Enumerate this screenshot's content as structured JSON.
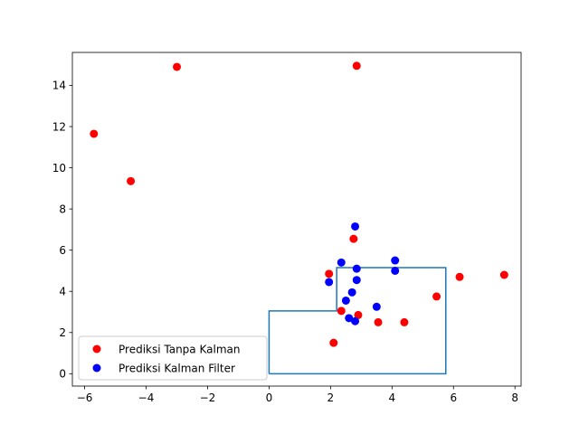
{
  "chart_data": {
    "type": "scatter",
    "title": "",
    "xlabel": "",
    "ylabel": "",
    "xlim": [
      -6.4,
      8.2
    ],
    "ylim": [
      -0.6,
      15.6
    ],
    "grid": false,
    "legend_position": "lower-left",
    "xticks": [
      -6,
      -4,
      -2,
      0,
      2,
      4,
      6,
      8
    ],
    "xtick_labels": [
      "−6",
      "−4",
      "−2",
      "0",
      "2",
      "4",
      "6",
      "8"
    ],
    "yticks": [
      0,
      2,
      4,
      6,
      8,
      10,
      12,
      14
    ],
    "ytick_labels": [
      "0",
      "2",
      "4",
      "6",
      "8",
      "10",
      "12",
      "14"
    ],
    "series": [
      {
        "name": "Prediksi Tanpa Kalman",
        "color": "#ff0000",
        "points": [
          [
            -5.7,
            11.65
          ],
          [
            -4.5,
            9.35
          ],
          [
            -3.0,
            14.9
          ],
          [
            2.85,
            14.95
          ],
          [
            2.75,
            6.55
          ],
          [
            1.95,
            4.85
          ],
          [
            2.35,
            3.05
          ],
          [
            2.9,
            2.85
          ],
          [
            3.55,
            2.5
          ],
          [
            4.4,
            2.5
          ],
          [
            2.1,
            1.5
          ],
          [
            5.45,
            3.75
          ],
          [
            6.2,
            4.7
          ],
          [
            7.65,
            4.8
          ]
        ]
      },
      {
        "name": "Prediksi Kalman Filter",
        "color": "#0000ff",
        "points": [
          [
            2.8,
            7.15
          ],
          [
            2.35,
            5.4
          ],
          [
            2.85,
            5.1
          ],
          [
            2.85,
            4.55
          ],
          [
            1.95,
            4.45
          ],
          [
            4.1,
            5.5
          ],
          [
            4.1,
            5.0
          ],
          [
            2.7,
            3.95
          ],
          [
            2.5,
            3.55
          ],
          [
            3.5,
            3.25
          ],
          [
            2.6,
            2.7
          ],
          [
            2.8,
            2.55
          ]
        ]
      }
    ],
    "outline": {
      "color": "#1f77b4",
      "path": [
        [
          0,
          0
        ],
        [
          0,
          3.05
        ],
        [
          2.2,
          3.05
        ],
        [
          2.2,
          5.15
        ],
        [
          5.75,
          5.15
        ],
        [
          5.75,
          0
        ],
        [
          0,
          0
        ]
      ]
    }
  }
}
